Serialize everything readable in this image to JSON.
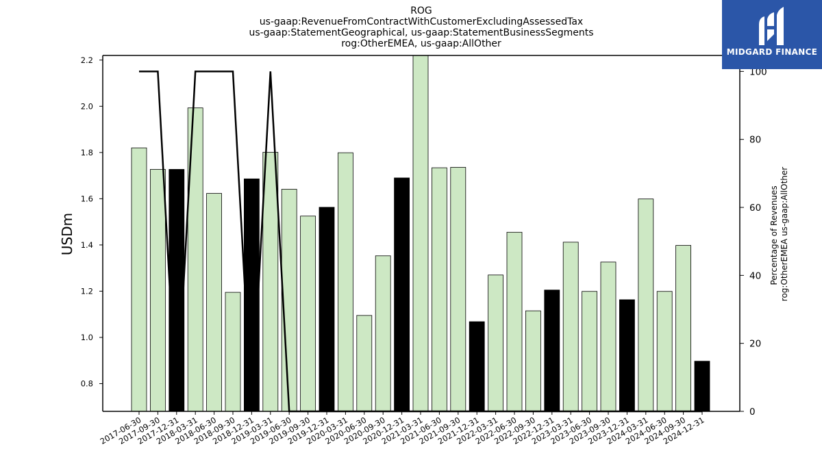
{
  "colors": {
    "bar_fill": "#cde8c4",
    "bar_highlight": "#000000",
    "line": "#000000",
    "logo_bg": "#2b56a8"
  },
  "logo": {
    "text": "MIDGARD FINANCE",
    "icon": "midgard-logo-icon"
  },
  "chart_data": {
    "type": "bar",
    "title_lines": [
      "ROG",
      "us-gaap:RevenueFromContractWithCustomerExcludingAssessedTax",
      "us-gaap:StatementGeographical, us-gaap:StatementBusinessSegments",
      "rog:OtherEMEA, us-gaap:AllOther"
    ],
    "ylabel": "USDm",
    "ylabel_right": [
      "Percentage of Revenues",
      "rog:OtherEMEA us-gaap:AllOther"
    ],
    "ylim": [
      0.68,
      2.22
    ],
    "ylim_right": [
      0,
      104.7
    ],
    "yticks": [
      "0.8",
      "1.0",
      "1.2",
      "1.4",
      "1.6",
      "1.8",
      "2.0",
      "2.2"
    ],
    "yticks_right": [
      "0",
      "20",
      "40",
      "60",
      "80",
      "100"
    ],
    "categories": [
      "2017-06-30",
      "2017-09-30",
      "2017-12-31",
      "2018-03-31",
      "2018-06-30",
      "2018-09-30",
      "2018-12-31",
      "2019-03-31",
      "2019-06-30",
      "2019-09-30",
      "2019-12-31",
      "2020-03-31",
      "2020-06-30",
      "2020-09-30",
      "2020-12-31",
      "2021-03-31",
      "2021-06-30",
      "2021-09-30",
      "2021-12-31",
      "2022-03-31",
      "2022-06-30",
      "2022-09-30",
      "2022-12-31",
      "2023-03-31",
      "2023-06-30",
      "2023-09-30",
      "2023-12-31",
      "2024-03-31",
      "2024-06-30",
      "2024-09-30",
      "2024-12-31"
    ],
    "values": [
      1.82,
      1.727,
      1.727,
      1.993,
      1.623,
      1.195,
      1.686,
      1.801,
      1.641,
      1.525,
      1.563,
      1.799,
      1.095,
      1.353,
      1.69,
      2.22,
      1.734,
      1.736,
      1.068,
      1.27,
      1.455,
      1.115,
      1.205,
      1.412,
      1.199,
      1.326,
      1.163,
      1.599,
      1.199,
      1.398,
      0.897
    ],
    "highlight": [
      false,
      false,
      true,
      false,
      false,
      false,
      true,
      false,
      false,
      false,
      true,
      false,
      false,
      false,
      true,
      false,
      false,
      false,
      true,
      false,
      false,
      false,
      true,
      false,
      false,
      false,
      true,
      false,
      false,
      false,
      true
    ],
    "line_values": [
      100,
      100,
      0,
      100,
      100,
      100,
      0,
      100,
      0,
      0,
      0,
      0,
      0,
      0,
      0,
      0,
      0,
      0,
      0,
      0,
      0,
      0,
      0,
      0,
      0,
      0,
      0,
      0,
      0,
      0,
      0
    ]
  }
}
